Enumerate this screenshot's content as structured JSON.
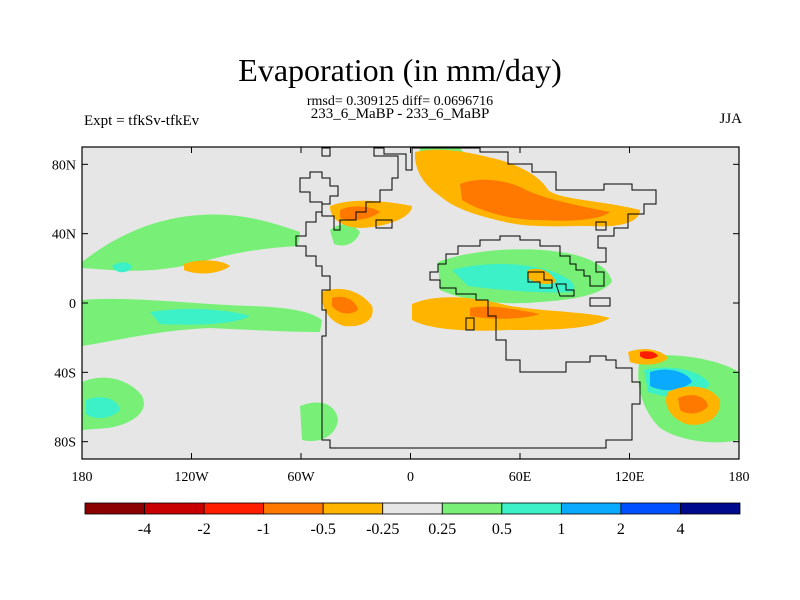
{
  "title": "Evaporation (in mm/day)",
  "stats": "rmsd= 0.309125 diff= 0.0696716",
  "experiment_pair": "233_6_MaBP - 233_6_MaBP",
  "expt_label": "Expt = tfkSv-tfkEv",
  "season": "JJA",
  "map": {
    "projection": "cylindrical-equidistant",
    "lon_range": [
      -180,
      180
    ],
    "lat_range": [
      -90,
      90
    ],
    "background_color": "#e6e6e6",
    "y_ticks": [
      "80N",
      "40N",
      "0",
      "40S",
      "80S"
    ],
    "x_ticks": [
      "180",
      "120W",
      "60W",
      "0",
      "60E",
      "120E",
      "180"
    ]
  },
  "colorbar": {
    "colors": [
      "#8b0000",
      "#c80000",
      "#ff1e00",
      "#ff7800",
      "#ffb400",
      "#e6e6e6",
      "#78f078",
      "#3cf0c8",
      "#0aaaff",
      "#0050ff",
      "#000a8c"
    ],
    "labels": [
      "-4",
      "-2",
      "-1",
      "-0.5",
      "-0.25",
      "0.25",
      "0.5",
      "1",
      "2",
      "4"
    ]
  }
}
